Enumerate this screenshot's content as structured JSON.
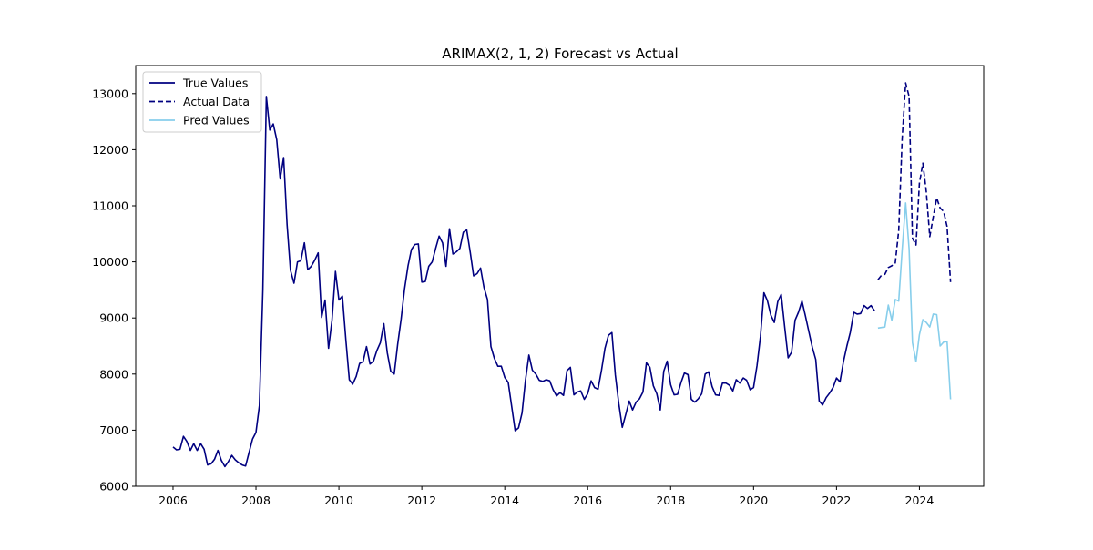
{
  "chart_data": {
    "type": "line",
    "title": "ARIMAX(2, 1, 2) Forecast vs Actual",
    "xlabel": "",
    "ylabel": "",
    "xlim": [
      2005.1,
      2025.55
    ],
    "ylim": [
      6000,
      13500
    ],
    "x_ticks": [
      "2006",
      "2008",
      "2010",
      "2012",
      "2014",
      "2016",
      "2018",
      "2020",
      "2022",
      "2024"
    ],
    "y_ticks": [
      "6000",
      "7000",
      "8000",
      "9000",
      "10000",
      "11000",
      "12000",
      "13000"
    ],
    "grid": false,
    "legend_position": "upper-left",
    "series": [
      {
        "name": "True Values",
        "color": "#000080",
        "style": "solid",
        "x": [
          2006.0,
          2006.083,
          2006.167,
          2006.25,
          2006.333,
          2006.417,
          2006.5,
          2006.583,
          2006.667,
          2006.75,
          2006.833,
          2006.917,
          2007.0,
          2007.083,
          2007.167,
          2007.25,
          2007.333,
          2007.417,
          2007.5,
          2007.583,
          2007.667,
          2007.75,
          2007.833,
          2007.917,
          2008.0,
          2008.083,
          2008.167,
          2008.25,
          2008.333,
          2008.417,
          2008.5,
          2008.583,
          2008.667,
          2008.75,
          2008.833,
          2008.917,
          2009.0,
          2009.083,
          2009.167,
          2009.25,
          2009.333,
          2009.417,
          2009.5,
          2009.583,
          2009.667,
          2009.75,
          2009.833,
          2009.917,
          2010.0,
          2010.083,
          2010.167,
          2010.25,
          2010.333,
          2010.417,
          2010.5,
          2010.583,
          2010.667,
          2010.75,
          2010.833,
          2010.917,
          2011.0,
          2011.083,
          2011.167,
          2011.25,
          2011.333,
          2011.417,
          2011.5,
          2011.583,
          2011.667,
          2011.75,
          2011.833,
          2011.917,
          2012.0,
          2012.083,
          2012.167,
          2012.25,
          2012.333,
          2012.417,
          2012.5,
          2012.583,
          2012.667,
          2012.75,
          2012.833,
          2012.917,
          2013.0,
          2013.083,
          2013.167,
          2013.25,
          2013.333,
          2013.417,
          2013.5,
          2013.583,
          2013.667,
          2013.75,
          2013.833,
          2013.917,
          2014.0,
          2014.083,
          2014.167,
          2014.25,
          2014.333,
          2014.417,
          2014.5,
          2014.583,
          2014.667,
          2014.75,
          2014.833,
          2014.917,
          2015.0,
          2015.083,
          2015.167,
          2015.25,
          2015.333,
          2015.417,
          2015.5,
          2015.583,
          2015.667,
          2015.75,
          2015.833,
          2015.917,
          2016.0,
          2016.083,
          2016.167,
          2016.25,
          2016.333,
          2016.417,
          2016.5,
          2016.583,
          2016.667,
          2016.75,
          2016.833,
          2016.917,
          2017.0,
          2017.083,
          2017.167,
          2017.25,
          2017.333,
          2017.417,
          2017.5,
          2017.583,
          2017.667,
          2017.75,
          2017.833,
          2017.917,
          2018.0,
          2018.083,
          2018.167,
          2018.25,
          2018.333,
          2018.417,
          2018.5,
          2018.583,
          2018.667,
          2018.75,
          2018.833,
          2018.917,
          2019.0,
          2019.083,
          2019.167,
          2019.25,
          2019.333,
          2019.417,
          2019.5,
          2019.583,
          2019.667,
          2019.75,
          2019.833,
          2019.917,
          2020.0,
          2020.083,
          2020.167,
          2020.25,
          2020.333,
          2020.417,
          2020.5,
          2020.583,
          2020.667,
          2020.75,
          2020.833,
          2020.917,
          2021.0,
          2021.083,
          2021.167,
          2021.25,
          2021.333,
          2021.417,
          2021.5,
          2021.583,
          2021.667,
          2021.75,
          2021.833,
          2021.917,
          2022.0,
          2022.083,
          2022.167,
          2022.25,
          2022.333,
          2022.417,
          2022.5,
          2022.583,
          2022.667,
          2022.75,
          2022.833,
          2022.917
        ],
        "values": [
          6700,
          6650,
          6660,
          6890,
          6800,
          6640,
          6760,
          6640,
          6760,
          6660,
          6380,
          6400,
          6480,
          6640,
          6460,
          6350,
          6440,
          6550,
          6470,
          6420,
          6380,
          6360,
          6600,
          6840,
          6960,
          7440,
          9500,
          12950,
          12350,
          12460,
          12180,
          11480,
          11860,
          10660,
          9850,
          9620,
          10000,
          10020,
          10340,
          9860,
          9920,
          10030,
          10160,
          9010,
          9320,
          8460,
          8960,
          9830,
          9320,
          9390,
          8610,
          7900,
          7820,
          7960,
          8190,
          8220,
          8490,
          8180,
          8230,
          8420,
          8560,
          8900,
          8380,
          8050,
          8000,
          8530,
          8980,
          9510,
          9930,
          10220,
          10310,
          10320,
          9640,
          9650,
          9920,
          10000,
          10240,
          10460,
          10340,
          9920,
          10590,
          10140,
          10180,
          10240,
          10530,
          10570,
          10170,
          9750,
          9790,
          9890,
          9540,
          9330,
          8490,
          8280,
          8140,
          8140,
          7940,
          7850,
          7420,
          6990,
          7040,
          7310,
          7890,
          8340,
          8070,
          8000,
          7890,
          7870,
          7900,
          7880,
          7720,
          7610,
          7670,
          7620,
          8060,
          8120,
          7630,
          7680,
          7700,
          7550,
          7650,
          7880,
          7760,
          7730,
          8070,
          8460,
          8690,
          8740,
          7980,
          7470,
          7050,
          7280,
          7520,
          7360,
          7500,
          7560,
          7680,
          8200,
          8120,
          7790,
          7650,
          7360,
          8050,
          8230,
          7810,
          7630,
          7640,
          7850,
          8020,
          7990,
          7550,
          7500,
          7560,
          7650,
          8000,
          8040,
          7780,
          7630,
          7620,
          7840,
          7840,
          7800,
          7700,
          7900,
          7840,
          7930,
          7890,
          7720,
          7760,
          8150,
          8670,
          9450,
          9310,
          9050,
          8920,
          9290,
          9420,
          8840,
          8290,
          8390,
          8960,
          9100,
          9300,
          9040,
          8760,
          8480,
          8260,
          7520,
          7450,
          7580,
          7660,
          7760,
          7930,
          7860,
          8220,
          8500,
          8740,
          9100,
          9070,
          9080,
          9220,
          9170,
          9220,
          9130
        ]
      },
      {
        "name": "Actual Data",
        "color": "#000080",
        "style": "dashed",
        "x": [
          2023.0,
          2023.083,
          2023.167,
          2023.25,
          2023.333,
          2023.417,
          2023.5,
          2023.583,
          2023.667,
          2023.75,
          2023.833,
          2023.917,
          2024.0,
          2024.083,
          2024.167,
          2024.25,
          2024.333,
          2024.417,
          2024.5,
          2024.583,
          2024.667,
          2024.75
        ],
        "values": [
          9680,
          9760,
          9780,
          9900,
          9930,
          9980,
          10560,
          12200,
          13190,
          12950,
          10420,
          10300,
          11400,
          11760,
          11250,
          10450,
          10800,
          11140,
          10960,
          10900,
          10630,
          9640
        ]
      },
      {
        "name": "Pred Values",
        "color": "#87ceeb",
        "style": "solid",
        "x": [
          2023.0,
          2023.083,
          2023.167,
          2023.25,
          2023.333,
          2023.417,
          2023.5,
          2023.583,
          2023.667,
          2023.75,
          2023.833,
          2023.917,
          2024.0,
          2024.083,
          2024.167,
          2024.25,
          2024.333,
          2024.417,
          2024.5,
          2024.583,
          2024.667,
          2024.75
        ],
        "values": [
          8820,
          8830,
          8840,
          9230,
          8960,
          9330,
          9300,
          10220,
          11050,
          10230,
          8560,
          8220,
          8700,
          8970,
          8920,
          8840,
          9070,
          9060,
          8500,
          8570,
          8580,
          7550
        ]
      }
    ]
  }
}
